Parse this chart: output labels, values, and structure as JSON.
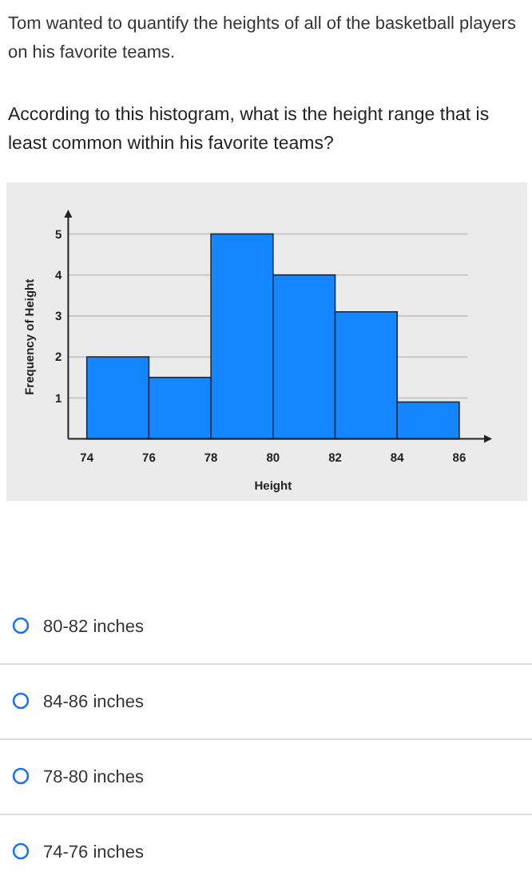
{
  "chart_data": {
    "type": "histogram",
    "title": "Tom wanted to quantify the heights of all of the basketball players on his favorite teams.",
    "subtitle": "According to this histogram, what is the height range that is least common within his favorite teams?",
    "xlabel": "Height",
    "ylabel": "Frequency of Height",
    "bins": [
      74,
      76,
      78,
      80,
      82,
      84,
      86
    ],
    "values": [
      2,
      1.5,
      5,
      4,
      3.1,
      0.9
    ],
    "color": "#1486ff",
    "xlim": [
      73.4,
      86.8
    ],
    "ylim": [
      0,
      5.4
    ],
    "xticks": [
      74,
      76,
      78,
      80,
      82,
      84,
      86
    ],
    "yticks": [
      1,
      2,
      3,
      4,
      5
    ],
    "grid": "y",
    "annotations": [
      "80-82 inches",
      "84-86 inches",
      "78-80 inches",
      "74-76 inches"
    ]
  }
}
